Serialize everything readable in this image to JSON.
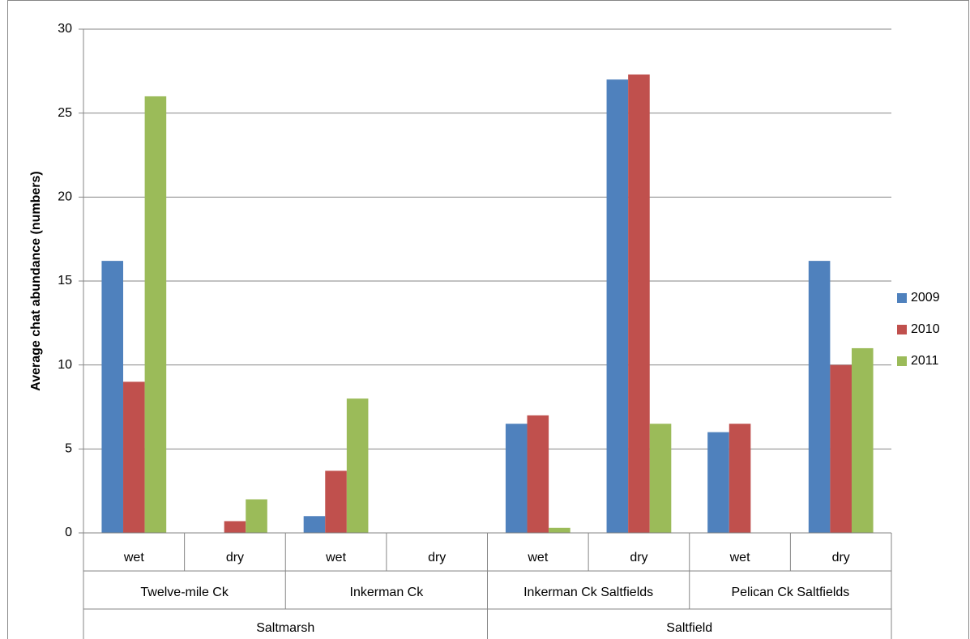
{
  "chart_data": {
    "type": "bar",
    "y_label": "Average chat abundance (numbers)",
    "categories": [
      "wet",
      "dry",
      "wet",
      "dry",
      "wet",
      "dry",
      "wet",
      "dry"
    ],
    "groups": [
      "Twelve-mile Ck",
      "Inkerman Ck",
      "Inkerman Ck Saltfields",
      "Pelican Ck Saltfields"
    ],
    "supergroups": [
      "Saltmarsh",
      "Saltfield"
    ],
    "series": [
      {
        "name": "2009",
        "color": "#4f81bd",
        "values": [
          16.2,
          0,
          1,
          0,
          6.5,
          27,
          6,
          16.2
        ]
      },
      {
        "name": "2010",
        "color": "#c0504d",
        "values": [
          9,
          0.7,
          3.7,
          0,
          7,
          27.3,
          6.5,
          10
        ]
      },
      {
        "name": "2011",
        "color": "#9bbb59",
        "values": [
          26,
          2,
          8,
          0,
          0.3,
          6.5,
          0,
          11
        ]
      }
    ],
    "ylim": [
      0,
      30
    ],
    "yticks": [
      0,
      5,
      10,
      15,
      20,
      25,
      30
    ],
    "grid": true,
    "legend": "right"
  }
}
